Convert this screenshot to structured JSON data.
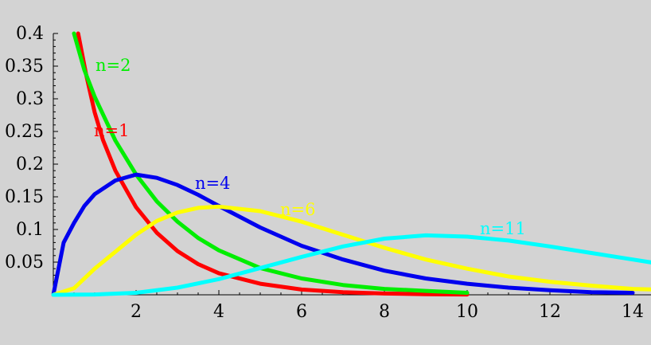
{
  "chart_data": {
    "type": "line",
    "title": "",
    "xlabel": "",
    "ylabel": "",
    "xlim": [
      0,
      14.5
    ],
    "ylim": [
      0,
      0.4
    ],
    "grid": false,
    "legend": "none (inline labels)",
    "background_color": "#d3d3d3",
    "x_ticks": [
      2,
      4,
      6,
      8,
      10,
      12,
      14
    ],
    "x_tick_labels": [
      "2",
      "4",
      "6",
      "8",
      "10",
      "12",
      "14"
    ],
    "y_ticks": [
      0.05,
      0.1,
      0.15,
      0.2,
      0.25,
      0.3,
      0.35,
      0.4
    ],
    "y_tick_labels": [
      "0.05",
      "0.1",
      "0.15",
      "0.2",
      "0.25",
      "0.3",
      "0.35",
      "0.4"
    ],
    "series": [
      {
        "name": "n=1",
        "color": "#ff0000",
        "x": [
          0.6,
          0.8,
          1,
          1.2,
          1.5,
          2,
          2.5,
          3,
          3.5,
          4,
          5,
          6,
          7,
          8,
          9,
          10
        ],
        "y": [
          0.4,
          0.335,
          0.279,
          0.237,
          0.19,
          0.134,
          0.095,
          0.067,
          0.047,
          0.033,
          0.017,
          0.008,
          0.004,
          0.002,
          0.001,
          0.0005
        ]
      },
      {
        "name": "n=2",
        "color": "#00ee00",
        "x": [
          0.5,
          0.75,
          1,
          1.5,
          2,
          2.5,
          3,
          3.5,
          4,
          5,
          6,
          7,
          8,
          9,
          10
        ],
        "y": [
          0.4,
          0.344,
          0.303,
          0.236,
          0.184,
          0.143,
          0.112,
          0.087,
          0.068,
          0.041,
          0.025,
          0.015,
          0.009,
          0.006,
          0.003
        ]
      },
      {
        "name": "n=4",
        "color": "#0000ee",
        "x": [
          0,
          0.25,
          0.5,
          0.75,
          1,
          1.5,
          2,
          2.5,
          3,
          3.5,
          4,
          5,
          6,
          7,
          8,
          9,
          10,
          11,
          12,
          13,
          14
        ],
        "y": [
          0,
          0.08,
          0.11,
          0.136,
          0.154,
          0.175,
          0.184,
          0.179,
          0.168,
          0.153,
          0.136,
          0.103,
          0.075,
          0.054,
          0.037,
          0.025,
          0.017,
          0.011,
          0.007,
          0.004,
          0.003
        ]
      },
      {
        "name": "n=6",
        "color": "#ffff00",
        "x": [
          0,
          0.5,
          1,
          1.5,
          2,
          2.5,
          3,
          3.5,
          4,
          5,
          6,
          7,
          8,
          9,
          10,
          11,
          12,
          13,
          14,
          14.5
        ],
        "y": [
          0,
          0.01,
          0.04,
          0.066,
          0.092,
          0.113,
          0.126,
          0.133,
          0.135,
          0.128,
          0.112,
          0.092,
          0.072,
          0.054,
          0.04,
          0.028,
          0.02,
          0.014,
          0.009,
          0.008
        ]
      },
      {
        "name": "n=11",
        "color": "#00ffff",
        "x": [
          0,
          1,
          2,
          3,
          4,
          5,
          6,
          7,
          8,
          9,
          10,
          11,
          12,
          13,
          14,
          14.5
        ],
        "y": [
          0,
          0.0005,
          0.003,
          0.011,
          0.024,
          0.041,
          0.058,
          0.074,
          0.086,
          0.091,
          0.089,
          0.083,
          0.074,
          0.064,
          0.054,
          0.049
        ]
      }
    ]
  }
}
